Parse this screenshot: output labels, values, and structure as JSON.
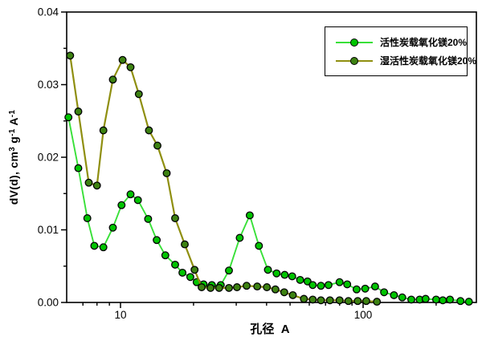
{
  "chart_data": {
    "type": "line",
    "title": "",
    "xlabel": "孔径  A",
    "ylabel": "dV(d), cm3 g-1 A-1",
    "ylabel_parts": [
      {
        "t": "dV(d), cm"
      },
      {
        "sup": "3"
      },
      {
        "t": " g"
      },
      {
        "sup": "-1"
      },
      {
        "t": " A"
      },
      {
        "sup": "-1"
      }
    ],
    "x_scale": "log",
    "x_range": [
      6,
      293
    ],
    "y_range": [
      0,
      0.04
    ],
    "grid": false,
    "legend_position": "top-right",
    "x_major_ticks": [
      {
        "value": 10,
        "label": "10"
      },
      {
        "value": 100,
        "label": "100"
      }
    ],
    "x_minor_ticks": [
      7,
      8,
      9,
      20,
      30,
      40,
      50,
      60,
      70,
      80,
      90,
      200
    ],
    "y_major_ticks": [
      {
        "value": 0.0,
        "label": "0.00"
      },
      {
        "value": 0.01,
        "label": "0.01"
      },
      {
        "value": 0.02,
        "label": "0.02"
      },
      {
        "value": 0.03,
        "label": "0.03"
      },
      {
        "value": 0.04,
        "label": "0.04"
      }
    ],
    "y_minor_ticks": [
      0.005,
      0.015,
      0.025,
      0.035
    ],
    "series": [
      {
        "name": "活性炭载氧化镁20%",
        "line_color": "#38e038",
        "marker_color": "#00c400",
        "x": [
          6.1,
          6.7,
          7.3,
          7.8,
          8.5,
          9.3,
          10.1,
          11.0,
          11.8,
          13.0,
          14.1,
          15.3,
          16.8,
          18.0,
          19.4,
          20.6,
          22.0,
          23.8,
          25.9,
          28.0,
          31.0,
          34.1,
          37.2,
          40.5,
          44,
          47.5,
          51,
          55,
          59,
          62,
          67,
          72,
          80,
          86,
          94,
          102,
          112,
          122,
          134,
          145,
          158,
          171,
          181,
          200,
          213,
          228,
          252,
          273
        ],
        "y": [
          0.0255,
          0.0185,
          0.0116,
          0.0078,
          0.0076,
          0.0103,
          0.0134,
          0.0149,
          0.0141,
          0.0115,
          0.0086,
          0.0065,
          0.0052,
          0.0041,
          0.0035,
          0.0028,
          0.0025,
          0.0024,
          0.0024,
          0.0044,
          0.0089,
          0.012,
          0.0078,
          0.0045,
          0.004,
          0.0038,
          0.0036,
          0.0031,
          0.0029,
          0.0024,
          0.0023,
          0.0024,
          0.0028,
          0.0025,
          0.0018,
          0.0019,
          0.0022,
          0.0014,
          0.001,
          0.0007,
          0.0004,
          0.0004,
          0.0005,
          0.0004,
          0.0003,
          0.0004,
          0.0002,
          0.0001
        ]
      },
      {
        "name": "湿活性炭载氧化镁20%",
        "line_color": "#8f8f10",
        "marker_color": "#3d8212",
        "x": [
          6.2,
          6.7,
          7.4,
          8.0,
          8.5,
          9.3,
          10.2,
          11.0,
          11.9,
          13.1,
          14.2,
          15.5,
          16.8,
          18.4,
          20.2,
          21.6,
          23.5,
          25.5,
          28.0,
          30.2,
          33.1,
          36.6,
          40.1,
          43.5,
          47.3,
          51.3,
          57,
          62,
          67,
          73,
          80,
          87,
          95,
          103,
          114
        ],
        "y": [
          0.034,
          0.0263,
          0.0165,
          0.0161,
          0.0237,
          0.0307,
          0.0334,
          0.0324,
          0.0287,
          0.0237,
          0.0216,
          0.0178,
          0.0116,
          0.008,
          0.0045,
          0.0021,
          0.002,
          0.002,
          0.002,
          0.0021,
          0.0023,
          0.0022,
          0.0021,
          0.0018,
          0.0014,
          0.001,
          0.0005,
          0.0004,
          0.0003,
          0.0003,
          0.0003,
          0.0002,
          0.0002,
          0.0002,
          0.0001
        ]
      }
    ]
  }
}
